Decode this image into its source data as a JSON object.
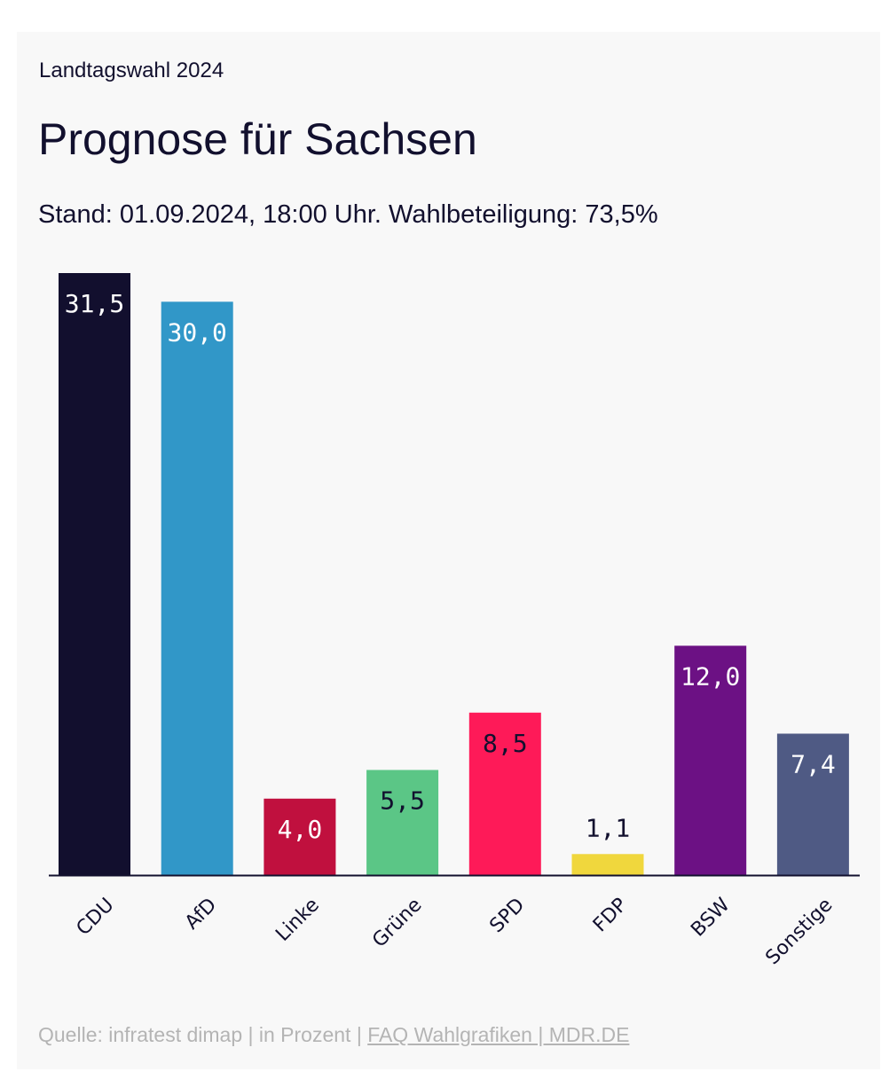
{
  "header": {
    "kicker": "Landtagswahl 2024",
    "title": "Prognose für Sachsen",
    "subtitle": "Stand: 01.09.2024, 18:00 Uhr. Wahlbeteiligung: 73,5%"
  },
  "chart_data": {
    "type": "bar",
    "categories": [
      "CDU",
      "AfD",
      "Linke",
      "Grüne",
      "SPD",
      "FDP",
      "BSW",
      "Sonstige"
    ],
    "values": [
      31.5,
      30.0,
      4.0,
      5.5,
      8.5,
      1.1,
      12.0,
      7.4
    ],
    "value_labels": [
      "31,5",
      "30,0",
      "4,0",
      "5,5",
      "8,5",
      "1,1",
      "12,0",
      "7,4"
    ],
    "colors": [
      "#120f2e",
      "#3197c8",
      "#c0103e",
      "#5bc686",
      "#fe1a58",
      "#f0d73d",
      "#6c1184",
      "#4f5a84"
    ],
    "label_colors": [
      "#ffffff",
      "#ffffff",
      "#ffffff",
      "#12102e",
      "#12102e",
      "#12102e",
      "#ffffff",
      "#ffffff"
    ],
    "ylim": [
      0,
      31.5
    ],
    "grid": false,
    "legend": "none"
  },
  "footer": {
    "source": "Quelle: infratest dimap | in Prozent | ",
    "link": "FAQ Wahlgrafiken | MDR.DE"
  }
}
